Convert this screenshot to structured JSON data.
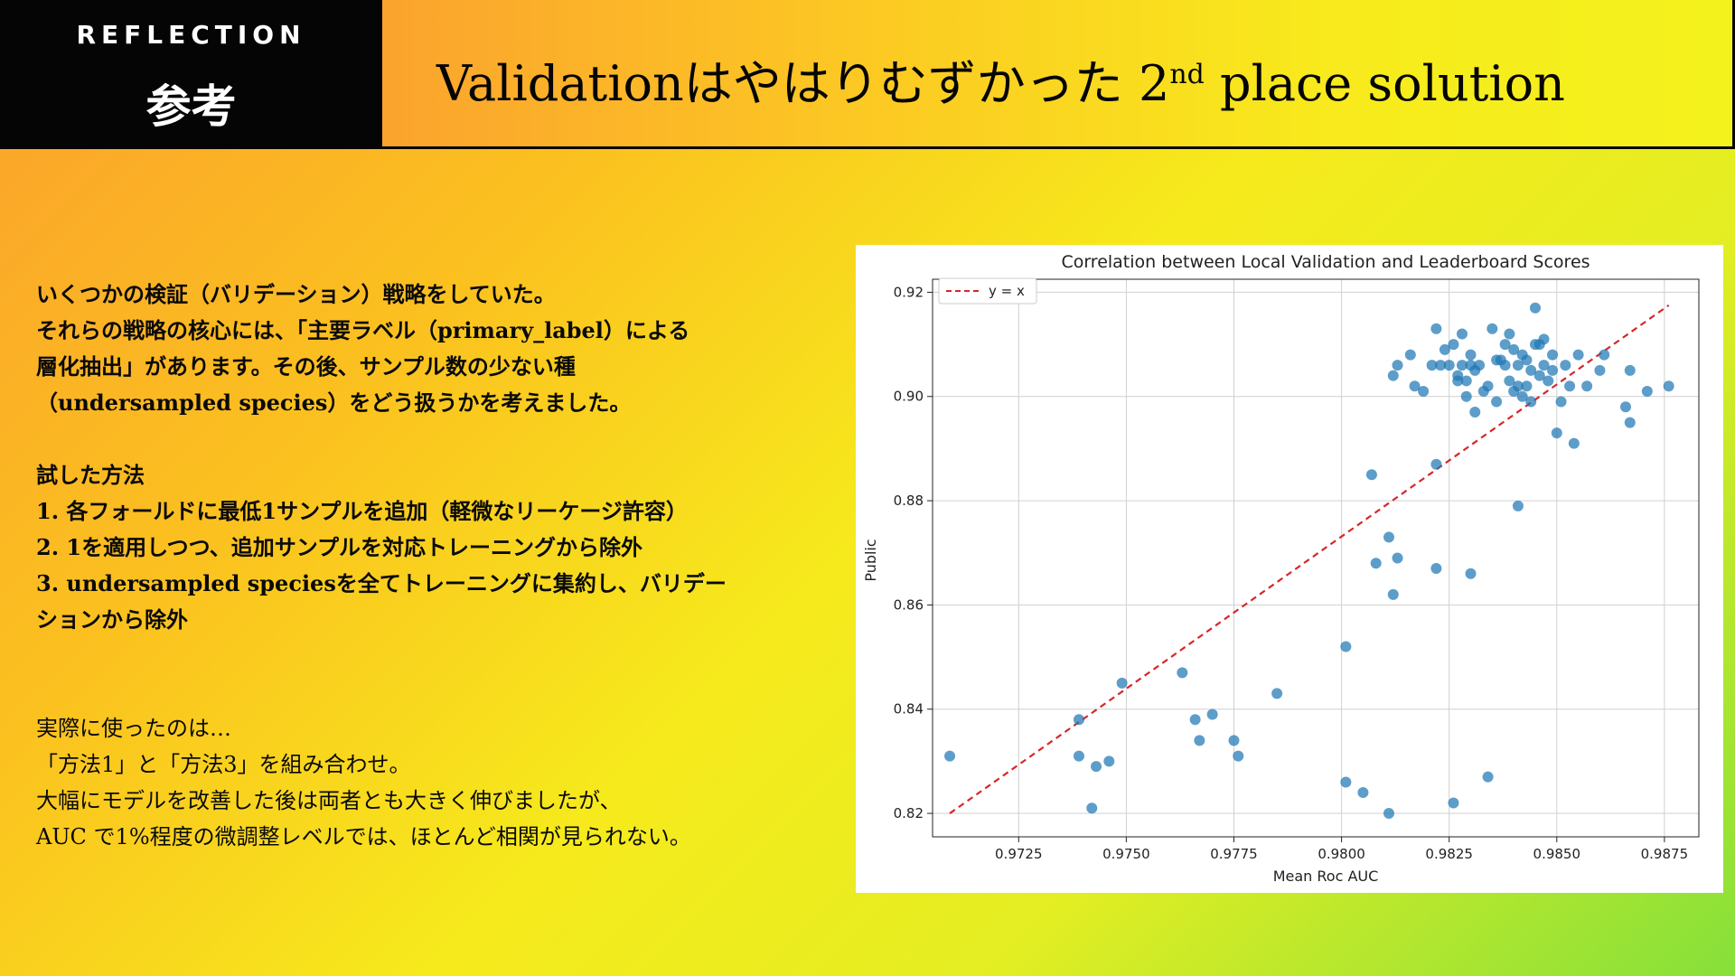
{
  "header": {
    "tag_label": "REFLECTION",
    "tag_sub": "参考",
    "title_main": "Validationはやはりむずかった 2",
    "title_sup": "nd",
    "title_end": " place solution"
  },
  "left_text": {
    "block1": [
      "いくつかの検証（バリデーション）戦略をしていた。",
      "それらの戦略の核心には、「主要ラベル（primary_label）による",
      "層化抽出」があります。その後、サンプル数の少ない種",
      "（undersampled species）をどう扱うかを考えました。",
      "",
      "試した方法",
      "1. 各フォールドに最低1サンプルを追加（軽微なリーケージ許容）",
      "2. 1を適用しつつ、追加サンプルを対応トレーニングから除外",
      "3. undersampled speciesを全てトレーニングに集約し、バリデー",
      "ションから除外"
    ],
    "block2": [
      "実際に使ったのは…",
      "「方法1」と「方法3」を組み合わせ。",
      "大幅にモデルを改善した後は両者とも大きく伸びましたが、",
      "AUC で1%程度の微調整レベルでは、ほとんど相関が見られない。"
    ]
  },
  "chart_data": {
    "type": "scatter",
    "title": "Correlation between Local Validation and Leaderboard Scores",
    "xlabel": "Mean Roc AUC",
    "ylabel": "Public",
    "xlim": [
      0.9705,
      0.9883
    ],
    "ylim": [
      0.8155,
      0.9225
    ],
    "xticks": [
      0.9725,
      0.975,
      0.9775,
      0.98,
      0.9825,
      0.985,
      0.9875
    ],
    "xtick_labels": [
      "0.9725",
      "0.9750",
      "0.9775",
      "0.9800",
      "0.9825",
      "0.9850",
      "0.9875"
    ],
    "yticks": [
      0.82,
      0.84,
      0.86,
      0.88,
      0.9,
      0.92
    ],
    "ytick_labels": [
      "0.82",
      "0.84",
      "0.86",
      "0.88",
      "0.90",
      "0.92"
    ],
    "grid": true,
    "legend": {
      "position": "top-left",
      "entries": [
        {
          "label": "y = x",
          "style": "dashed",
          "color": "#d62728"
        }
      ]
    },
    "reference_line": {
      "label": "y = x",
      "x": [
        0.9709,
        0.9876
      ],
      "y": [
        0.82,
        0.9175
      ]
    },
    "series": [
      {
        "color": "#1f77b4",
        "x": [
          0.9709,
          0.9739,
          0.9739,
          0.9742,
          0.9743,
          0.9746,
          0.9749,
          0.9763,
          0.9766,
          0.9767,
          0.977,
          0.9775,
          0.9776,
          0.9785,
          0.9801,
          0.9801,
          0.9805,
          0.9807,
          0.9808,
          0.9811,
          0.9811,
          0.9812,
          0.9813,
          0.9822,
          0.9822,
          0.9826,
          0.983,
          0.9834,
          0.9841,
          0.9812,
          0.9813,
          0.9816,
          0.9817,
          0.9819,
          0.9821,
          0.9822,
          0.9823,
          0.9824,
          0.9825,
          0.9826,
          0.9827,
          0.9827,
          0.9828,
          0.9828,
          0.9829,
          0.9829,
          0.983,
          0.983,
          0.9831,
          0.9831,
          0.9832,
          0.9833,
          0.9834,
          0.9835,
          0.9836,
          0.9836,
          0.9837,
          0.9838,
          0.9838,
          0.9839,
          0.9839,
          0.984,
          0.984,
          0.9841,
          0.9841,
          0.9842,
          0.9842,
          0.9843,
          0.9843,
          0.9844,
          0.9844,
          0.9845,
          0.9845,
          0.9846,
          0.9846,
          0.9847,
          0.9847,
          0.9848,
          0.9849,
          0.9849,
          0.985,
          0.9851,
          0.9852,
          0.9853,
          0.9854,
          0.9855,
          0.9857,
          0.986,
          0.9861,
          0.9866,
          0.9867,
          0.9867,
          0.9871,
          0.9876
        ],
        "y": [
          0.831,
          0.838,
          0.831,
          0.821,
          0.829,
          0.83,
          0.845,
          0.847,
          0.838,
          0.834,
          0.839,
          0.834,
          0.831,
          0.843,
          0.852,
          0.826,
          0.824,
          0.885,
          0.868,
          0.82,
          0.873,
          0.862,
          0.869,
          0.887,
          0.867,
          0.822,
          0.866,
          0.827,
          0.879,
          0.904,
          0.906,
          0.908,
          0.902,
          0.901,
          0.906,
          0.913,
          0.906,
          0.909,
          0.906,
          0.91,
          0.904,
          0.903,
          0.912,
          0.906,
          0.903,
          0.9,
          0.906,
          0.908,
          0.897,
          0.905,
          0.906,
          0.901,
          0.902,
          0.913,
          0.899,
          0.907,
          0.907,
          0.906,
          0.91,
          0.903,
          0.912,
          0.901,
          0.909,
          0.902,
          0.906,
          0.9,
          0.908,
          0.902,
          0.907,
          0.905,
          0.899,
          0.917,
          0.91,
          0.904,
          0.91,
          0.906,
          0.911,
          0.903,
          0.905,
          0.908,
          0.893,
          0.899,
          0.906,
          0.902,
          0.891,
          0.908,
          0.902,
          0.905,
          0.908,
          0.898,
          0.905,
          0.895,
          0.901,
          0.902
        ]
      }
    ]
  }
}
